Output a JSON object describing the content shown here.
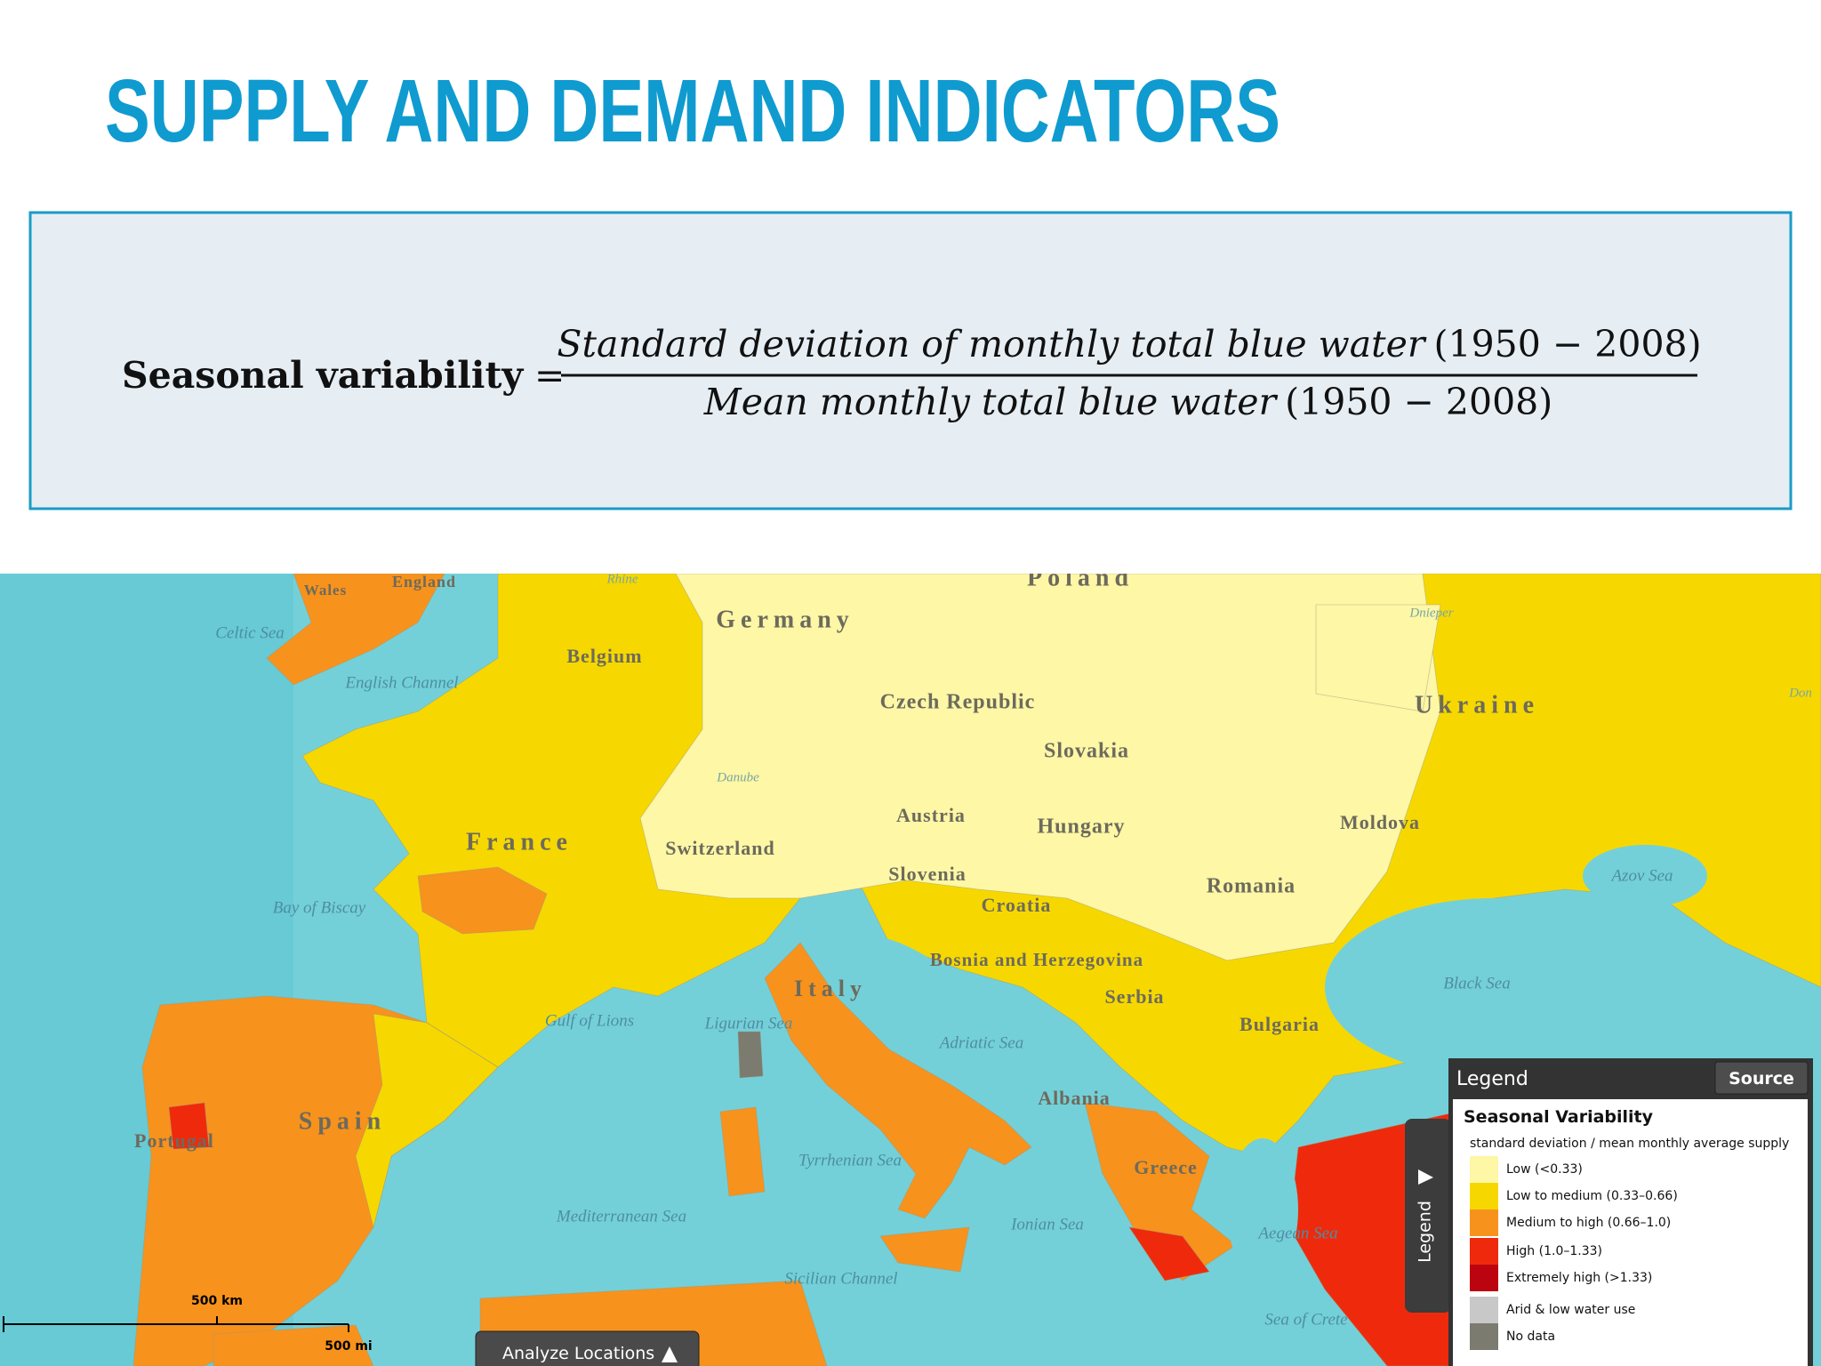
{
  "header": {
    "title": "SUPPLY AND DEMAND INDICATORS"
  },
  "formula": {
    "lhs": "Seasonal variability",
    "equals": "=",
    "numerator": "Standard deviation of monthly total blue water",
    "numerator_years": "(1950 − 2008)",
    "denominator": "Mean monthly total blue water",
    "denominator_years": "(1950 − 2008)"
  },
  "map": {
    "countries": [
      "Wales",
      "England",
      "Germany",
      "Poland",
      "Belgium",
      "Czech Republic",
      "Ukraine",
      "Slovakia",
      "France",
      "Switzerland",
      "Austria",
      "Hungary",
      "Moldova",
      "Slovenia",
      "Romania",
      "Croatia",
      "Bosnia and Herzegovina",
      "Italy",
      "Serbia",
      "Bulgaria",
      "Albania",
      "Spain",
      "Portugal",
      "Greece"
    ],
    "seas": [
      "Celtic Sea",
      "English Channel",
      "Azov Sea",
      "Bay of Biscay",
      "Black Sea",
      "Gulf of Lions",
      "Ligurian Sea",
      "Adriatic Sea",
      "Tyrrhenian Sea",
      "Mediterranean Sea",
      "Ionian Sea",
      "Aegean Sea",
      "Sicilian Channel",
      "Sea of Crete"
    ],
    "rivers": [
      "Rhine",
      "Danube",
      "Dnieper",
      "Don"
    ],
    "scale": [
      "500 km",
      "500 mi"
    ],
    "button": "Analyze Locations",
    "legend_tab": "Legend"
  },
  "legend": {
    "title": "Legend",
    "source": "Source",
    "heading": "Seasonal Variability",
    "subtitle": "standard deviation / mean monthly average supply",
    "items": [
      {
        "label": "Low (<0.33)",
        "color": "#fdf7a6"
      },
      {
        "label": "Low to medium (0.33–0.66)",
        "color": "#f6d800"
      },
      {
        "label": "Medium to high (0.66–1.0)",
        "color": "#f7921d"
      },
      {
        "label": "High (1.0–1.33)",
        "color": "#ef2a0c"
      },
      {
        "label": "Extremely high (>1.33)",
        "color": "#bb0410"
      },
      {
        "label": "Arid & low water use",
        "color": "#c8c8c8"
      },
      {
        "label": "No data",
        "color": "#7b7b70"
      }
    ]
  }
}
